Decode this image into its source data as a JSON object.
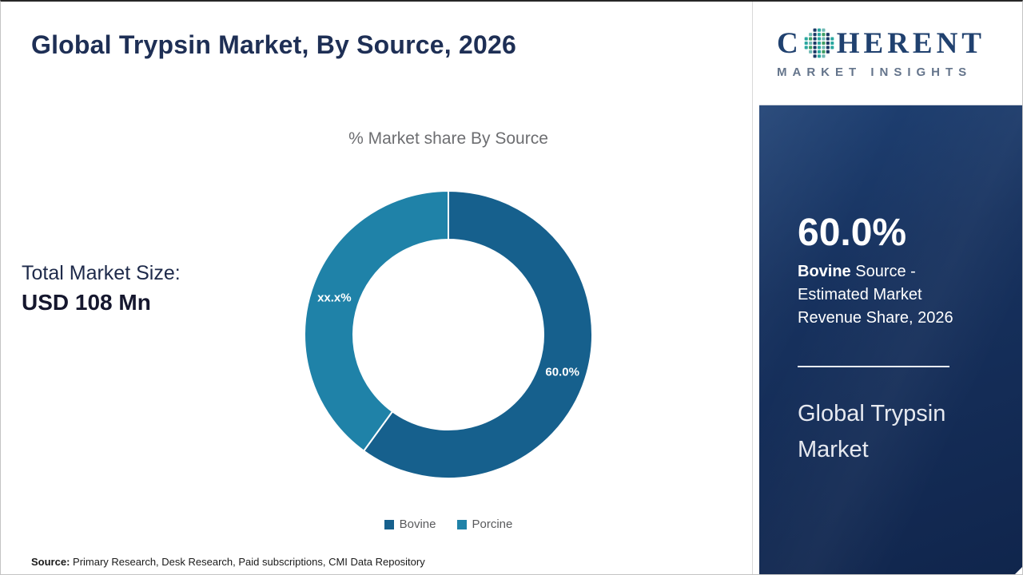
{
  "page": {
    "title": "Global Trypsin Market, By Source, 2026",
    "footer": {
      "label": "Source:",
      "text": " Primary Research, Desk Research, Paid subscriptions, CMI Data Repository"
    }
  },
  "left": {
    "total_market_label": "Total Market Size:",
    "total_market_value": "USD 108 Mn"
  },
  "chart_data": {
    "type": "pie",
    "donut": true,
    "title": "% Market share By Source",
    "categories": [
      "Bovine",
      "Porcine"
    ],
    "values": [
      60.0,
      40.0
    ],
    "slice_labels": [
      "60.0%",
      "xx.x%"
    ],
    "colors": [
      "#16608d",
      "#1f82a8"
    ],
    "start_angle_deg": 0,
    "legend_position": "bottom"
  },
  "sidebar": {
    "logo": {
      "brand_start": "C",
      "brand_end": "HERENT",
      "brand_sub": "MARKET INSIGHTS",
      "globe_icon": "pixel-globe-icon"
    },
    "stat_value": "60.0%",
    "stat_category": "Bovine",
    "stat_rest": "  Source - Estimated Market Revenue Share, 2026",
    "panel_title": "Global Trypsin Market",
    "colors": {
      "panel_bg": "#16315e",
      "accent_teal": "#2ba7a0"
    }
  }
}
